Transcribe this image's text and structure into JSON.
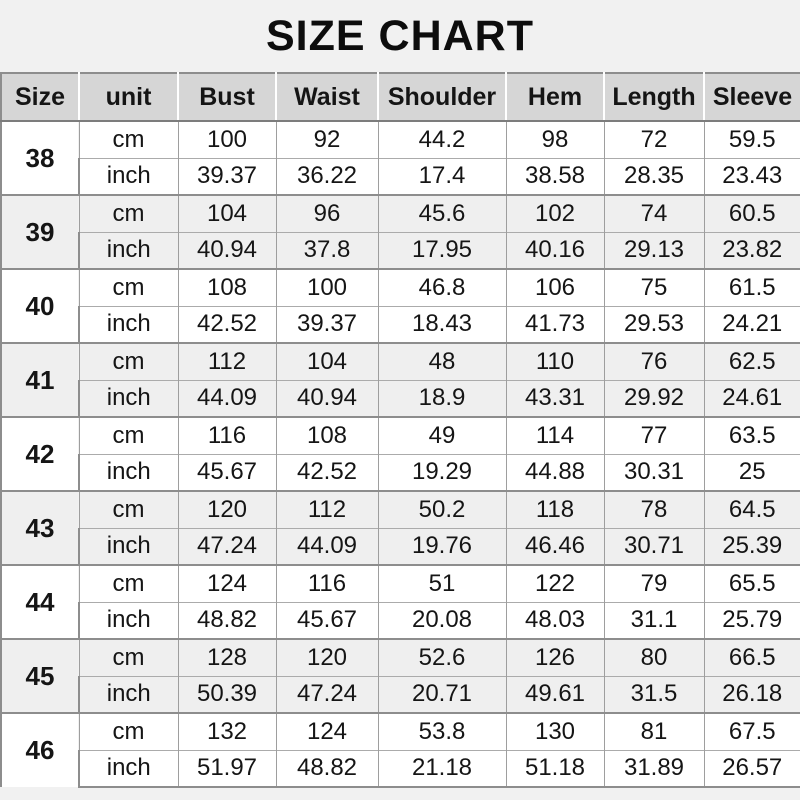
{
  "title": "SIZE CHART",
  "colors": {
    "page_background": "#f1f1f1",
    "header_background": "#d6d6d6",
    "row_white": "#ffffff",
    "row_alt_gray": "#efefef",
    "border_dark": "#8d8d8d",
    "border_light": "#ababab",
    "text": "#151515"
  },
  "table": {
    "columns": [
      "Size",
      "unit",
      "Bust",
      "Waist",
      "Shoulder",
      "Hem",
      "Length",
      "Sleeve"
    ],
    "unit_labels": [
      "cm",
      "inch"
    ],
    "rows": [
      {
        "size": "38",
        "cm": [
          "100",
          "92",
          "44.2",
          "98",
          "72",
          "59.5"
        ],
        "inch": [
          "39.37",
          "36.22",
          "17.4",
          "38.58",
          "28.35",
          "23.43"
        ]
      },
      {
        "size": "39",
        "cm": [
          "104",
          "96",
          "45.6",
          "102",
          "74",
          "60.5"
        ],
        "inch": [
          "40.94",
          "37.8",
          "17.95",
          "40.16",
          "29.13",
          "23.82"
        ]
      },
      {
        "size": "40",
        "cm": [
          "108",
          "100",
          "46.8",
          "106",
          "75",
          "61.5"
        ],
        "inch": [
          "42.52",
          "39.37",
          "18.43",
          "41.73",
          "29.53",
          "24.21"
        ]
      },
      {
        "size": "41",
        "cm": [
          "112",
          "104",
          "48",
          "110",
          "76",
          "62.5"
        ],
        "inch": [
          "44.09",
          "40.94",
          "18.9",
          "43.31",
          "29.92",
          "24.61"
        ]
      },
      {
        "size": "42",
        "cm": [
          "116",
          "108",
          "49",
          "114",
          "77",
          "63.5"
        ],
        "inch": [
          "45.67",
          "42.52",
          "19.29",
          "44.88",
          "30.31",
          "25"
        ]
      },
      {
        "size": "43",
        "cm": [
          "120",
          "112",
          "50.2",
          "118",
          "78",
          "64.5"
        ],
        "inch": [
          "47.24",
          "44.09",
          "19.76",
          "46.46",
          "30.71",
          "25.39"
        ]
      },
      {
        "size": "44",
        "cm": [
          "124",
          "116",
          "51",
          "122",
          "79",
          "65.5"
        ],
        "inch": [
          "48.82",
          "45.67",
          "20.08",
          "48.03",
          "31.1",
          "25.79"
        ]
      },
      {
        "size": "45",
        "cm": [
          "128",
          "120",
          "52.6",
          "126",
          "80",
          "66.5"
        ],
        "inch": [
          "50.39",
          "47.24",
          "20.71",
          "49.61",
          "31.5",
          "26.18"
        ]
      },
      {
        "size": "46",
        "cm": [
          "132",
          "124",
          "53.8",
          "130",
          "81",
          "67.5"
        ],
        "inch": [
          "51.97",
          "48.82",
          "21.18",
          "51.18",
          "31.89",
          "26.57"
        ]
      }
    ]
  }
}
